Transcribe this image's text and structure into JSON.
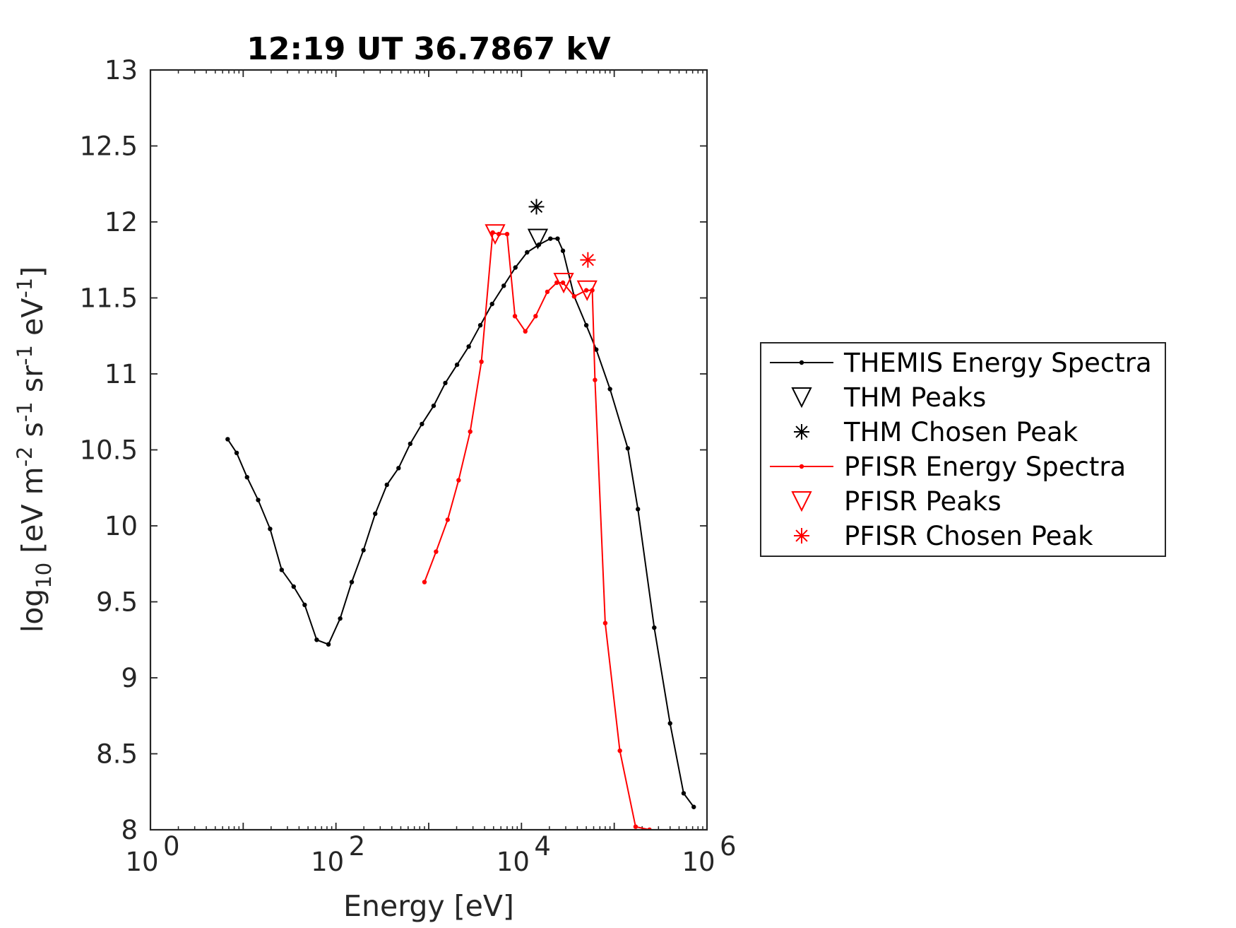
{
  "chart_data": {
    "type": "line",
    "title": "12:19 UT 36.7867 kV",
    "xlabel": "Energy [eV]",
    "ylabel": "log10 [eV m-2 s-1 sr-1 eV-1]",
    "xscale": "log",
    "xlim": [
      1,
      1000000
    ],
    "ylim": [
      8,
      13
    ],
    "x_tick_labels": [
      {
        "base": "10",
        "exp": "0",
        "value": 1
      },
      {
        "base": "10",
        "exp": "2",
        "value": 100
      },
      {
        "base": "10",
        "exp": "4",
        "value": 10000
      },
      {
        "base": "10",
        "exp": "6",
        "value": 1000000
      }
    ],
    "y_ticks": [
      "8",
      "8.5",
      "9",
      "9.5",
      "10",
      "10.5",
      "11",
      "11.5",
      "12",
      "12.5",
      "13"
    ],
    "grid": false,
    "legend_position": "outside-right",
    "series": [
      {
        "name": "THEMIS Energy Spectra",
        "color": "#000000",
        "marker": "dot",
        "x": [
          6.8,
          8.5,
          11,
          14.5,
          19.5,
          26,
          35,
          46,
          62,
          83,
          111,
          148,
          198,
          265,
          354,
          473,
          632,
          845,
          1130,
          1510,
          2020,
          2700,
          3600,
          4820,
          6440,
          8600,
          11500,
          15400,
          20500,
          24500,
          28000,
          37000,
          50000,
          64000,
          90000,
          140000,
          180000,
          270000,
          400000,
          560000,
          720000
        ],
        "y": [
          10.57,
          10.48,
          10.32,
          10.17,
          9.98,
          9.71,
          9.6,
          9.48,
          9.25,
          9.22,
          9.39,
          9.63,
          9.84,
          10.08,
          10.27,
          10.38,
          10.54,
          10.67,
          10.79,
          10.94,
          11.06,
          11.18,
          11.32,
          11.46,
          11.58,
          11.7,
          11.8,
          11.85,
          11.89,
          11.89,
          11.81,
          11.51,
          11.32,
          11.16,
          10.9,
          10.51,
          10.11,
          9.33,
          8.7,
          8.24,
          8.15
        ]
      },
      {
        "name": "THM Peaks",
        "color": "#000000",
        "marker": "triangle-down",
        "x": [
          15000
        ],
        "y": [
          11.89
        ]
      },
      {
        "name": "THM Chosen Peak",
        "color": "#000000",
        "marker": "asterisk",
        "x": [
          14500
        ],
        "y": [
          12.1
        ]
      },
      {
        "name": "PFISR Energy Spectra",
        "color": "#ff0000",
        "marker": "dot",
        "x": [
          900,
          1200,
          1600,
          2100,
          2800,
          3700,
          4900,
          5700,
          7000,
          8500,
          11000,
          14200,
          19000,
          24000,
          28000,
          37000,
          50000,
          58000,
          62000,
          80000,
          115000,
          170000,
          240000
        ],
        "y": [
          9.63,
          9.83,
          10.04,
          10.3,
          10.62,
          11.08,
          11.93,
          11.92,
          11.92,
          11.38,
          11.28,
          11.38,
          11.54,
          11.6,
          11.6,
          11.51,
          11.55,
          11.55,
          10.96,
          9.36,
          8.52,
          8.02,
          8.0
        ]
      },
      {
        "name": "PFISR Peaks",
        "color": "#ff0000",
        "marker": "triangle-down",
        "x": [
          5200,
          28500,
          51000
        ],
        "y": [
          11.92,
          11.6,
          11.55
        ]
      },
      {
        "name": "PFISR Chosen Peak",
        "color": "#ff0000",
        "marker": "asterisk",
        "x": [
          52000
        ],
        "y": [
          11.75
        ]
      }
    ]
  }
}
